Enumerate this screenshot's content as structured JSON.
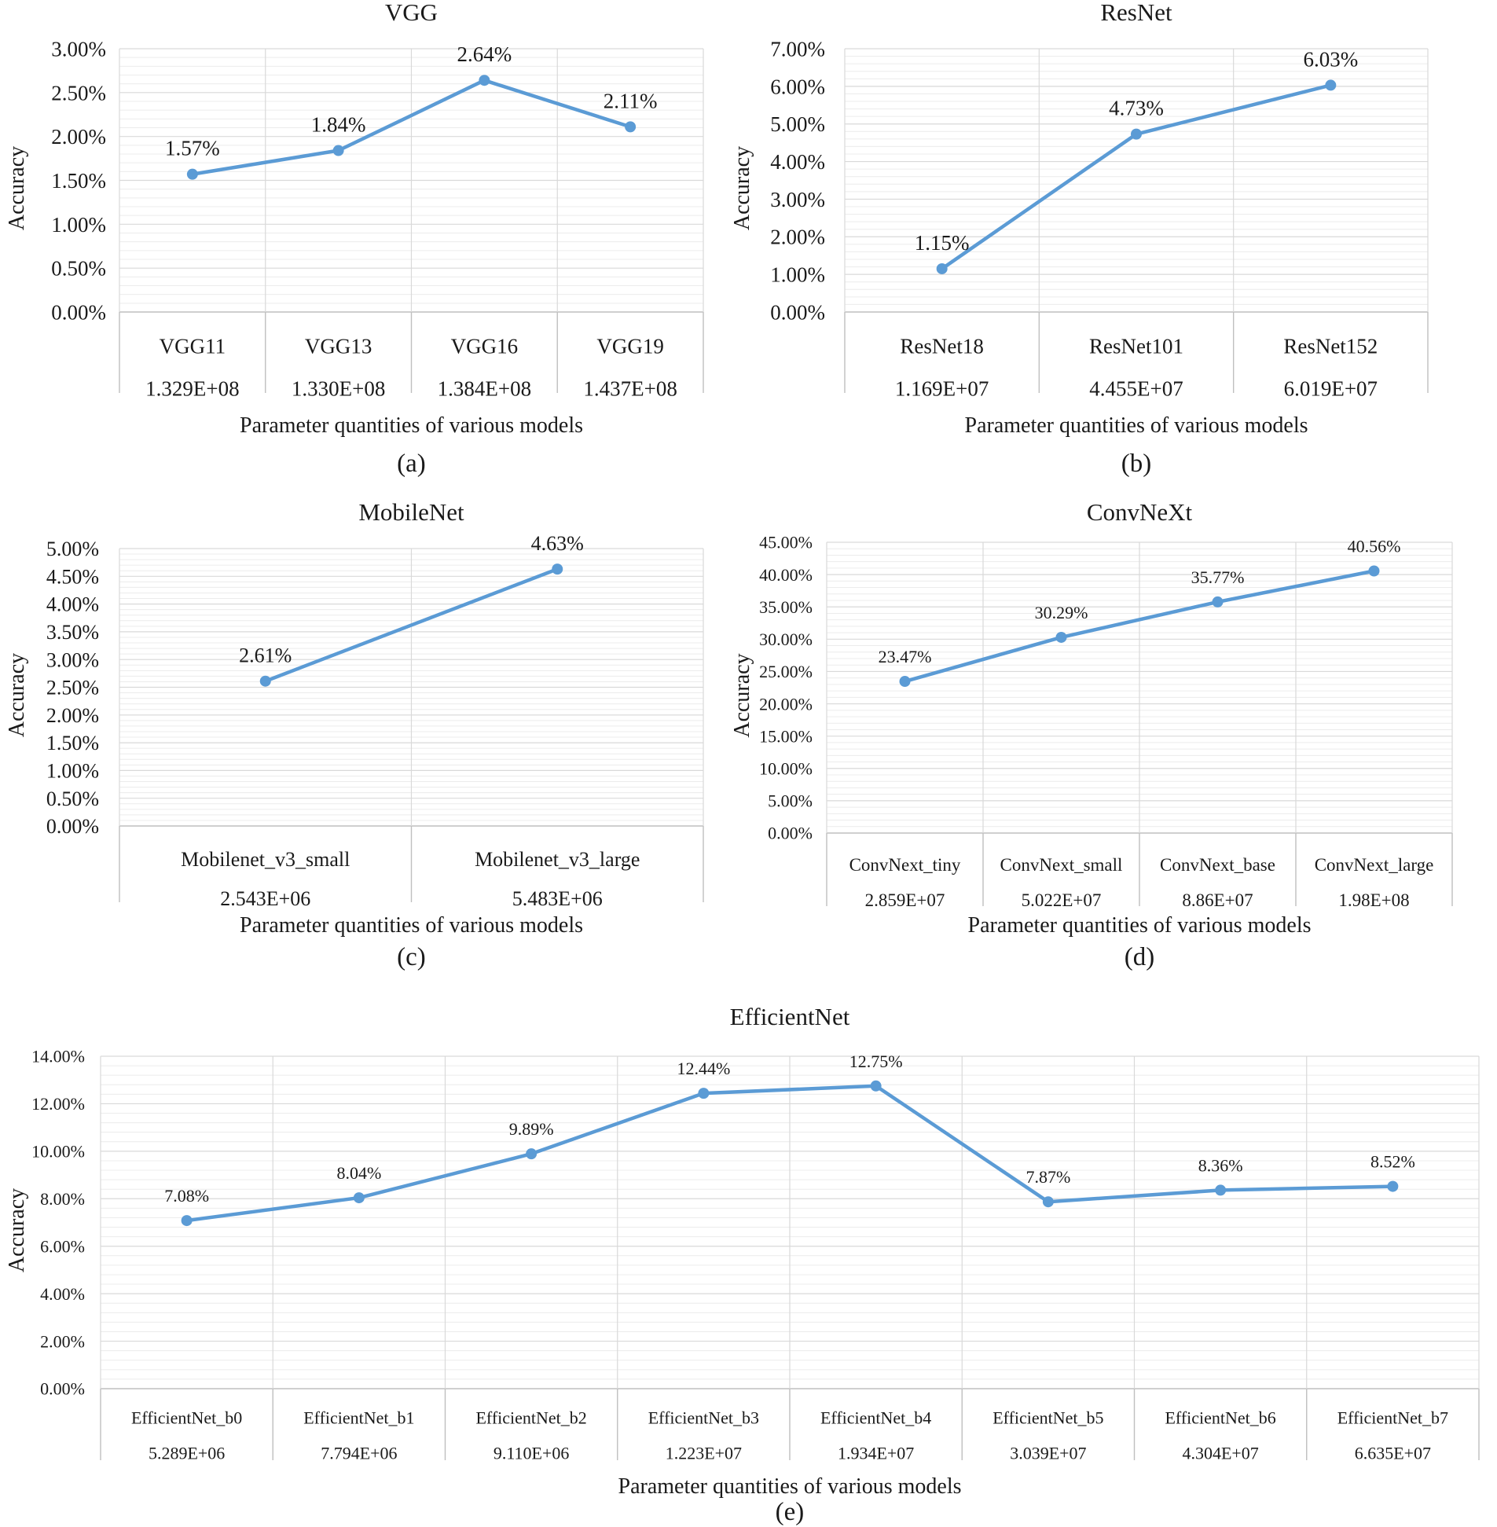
{
  "colors": {
    "line": "#5b9bd5",
    "grid": "#d9d9d9",
    "axis": "#bfbfbf",
    "text": "#1a1a1a"
  },
  "chart_data": [
    {
      "panel": "(a)",
      "type": "line",
      "title": "VGG",
      "ylabel": "Accuracy",
      "xlabel": "Parameter quantities of various models",
      "categories": [
        "VGG11",
        "VGG13",
        "VGG16",
        "VGG19"
      ],
      "params": [
        "1.329E+08",
        "1.330E+08",
        "1.384E+08",
        "1.437E+08"
      ],
      "values": [
        1.57,
        1.84,
        2.64,
        2.11
      ],
      "point_labels": [
        "1.57%",
        "1.84%",
        "2.64%",
        "2.11%"
      ],
      "yticks": [
        "0.00%",
        "0.50%",
        "1.00%",
        "1.50%",
        "2.00%",
        "2.50%",
        "3.00%"
      ],
      "ylim": [
        0,
        3
      ],
      "grid": true,
      "legend": "none"
    },
    {
      "panel": "(b)",
      "type": "line",
      "title": "ResNet",
      "ylabel": "Accuracy",
      "xlabel": "Parameter quantities of various models",
      "categories": [
        "ResNet18",
        "ResNet101",
        "ResNet152"
      ],
      "params": [
        "1.169E+07",
        "4.455E+07",
        "6.019E+07"
      ],
      "values": [
        1.15,
        4.73,
        6.03
      ],
      "point_labels": [
        "1.15%",
        "4.73%",
        "6.03%"
      ],
      "yticks": [
        "0.00%",
        "1.00%",
        "2.00%",
        "3.00%",
        "4.00%",
        "5.00%",
        "6.00%",
        "7.00%"
      ],
      "ylim": [
        0,
        7
      ],
      "grid": true,
      "legend": "none"
    },
    {
      "panel": "(c)",
      "type": "line",
      "title": "MobileNet",
      "ylabel": "Accuracy",
      "xlabel": "Parameter quantities of various models",
      "categories": [
        "Mobilenet_v3_small",
        "Mobilenet_v3_large"
      ],
      "params": [
        "2.543E+06",
        "5.483E+06"
      ],
      "values": [
        2.61,
        4.63
      ],
      "point_labels": [
        "2.61%",
        "4.63%"
      ],
      "yticks": [
        "0.00%",
        "0.50%",
        "1.00%",
        "1.50%",
        "2.00%",
        "2.50%",
        "3.00%",
        "3.50%",
        "4.00%",
        "4.50%",
        "5.00%"
      ],
      "ylim": [
        0,
        5
      ],
      "grid": true,
      "legend": "none"
    },
    {
      "panel": "(d)",
      "type": "line",
      "title": "ConvNeXt",
      "ylabel": "Accuracy",
      "xlabel": "Parameter quantities of various models",
      "categories": [
        "ConvNext_tiny",
        "ConvNext_small",
        "ConvNext_base",
        "ConvNext_large"
      ],
      "params": [
        "2.859E+07",
        "5.022E+07",
        "8.86E+07",
        "1.98E+08"
      ],
      "values": [
        23.47,
        30.29,
        35.77,
        40.56
      ],
      "point_labels": [
        "23.47%",
        "30.29%",
        "35.77%",
        "40.56%"
      ],
      "yticks": [
        "0.00%",
        "5.00%",
        "10.00%",
        "15.00%",
        "20.00%",
        "25.00%",
        "30.00%",
        "35.00%",
        "40.00%",
        "45.00%"
      ],
      "ylim": [
        0,
        45
      ],
      "grid": true,
      "legend": "none"
    },
    {
      "panel": "(e)",
      "type": "line",
      "title": "EfficientNet",
      "ylabel": "Accuracy",
      "xlabel": "Parameter quantities of various models",
      "categories": [
        "EfficientNet_b0",
        "EfficientNet_b1",
        "EfficientNet_b2",
        "EfficientNet_b3",
        "EfficientNet_b4",
        "EfficientNet_b5",
        "EfficientNet_b6",
        "EfficientNet_b7"
      ],
      "params": [
        "5.289E+06",
        "7.794E+06",
        "9.110E+06",
        "1.223E+07",
        "1.934E+07",
        "3.039E+07",
        "4.304E+07",
        "6.635E+07"
      ],
      "values": [
        7.08,
        8.04,
        9.89,
        12.44,
        12.75,
        7.87,
        8.36,
        8.52
      ],
      "point_labels": [
        "7.08%",
        "8.04%",
        "9.89%",
        "12.44%",
        "12.75%",
        "7.87%",
        "8.36%",
        "8.52%"
      ],
      "yticks": [
        "0.00%",
        "2.00%",
        "4.00%",
        "6.00%",
        "8.00%",
        "10.00%",
        "12.00%",
        "14.00%"
      ],
      "ylim": [
        0,
        14
      ],
      "grid": true,
      "legend": "none"
    }
  ]
}
